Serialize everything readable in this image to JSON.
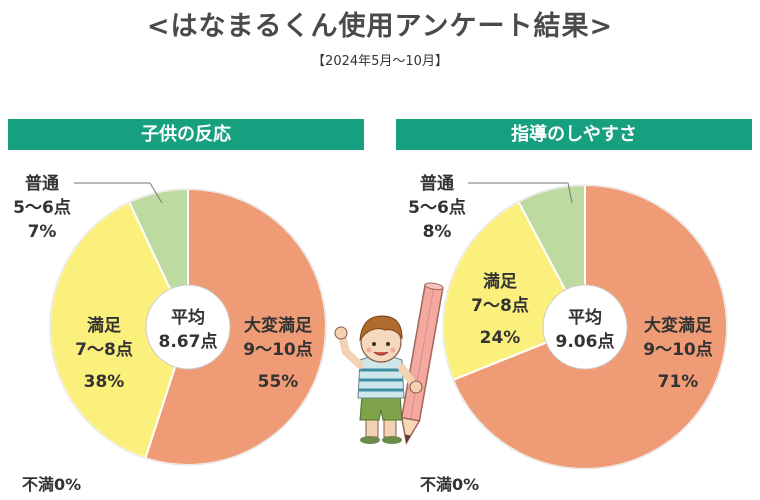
{
  "page": {
    "title": "<はなまるくん使用アンケート結果>",
    "period": "【2024年5月～10月】"
  },
  "colors": {
    "header": "#16a07f",
    "very_satisfied": "#ef9c76",
    "satisfied": "#fbf07c",
    "normal": "#bddba0",
    "outline": "#ffffff"
  },
  "chart_data": [
    {
      "type": "pie",
      "title": "子供の反応",
      "center_label": {
        "line1": "平均",
        "line2": "8.67点"
      },
      "slices": [
        {
          "name": "大変満足",
          "range": "9～10点",
          "pct_label": "55%",
          "value": 55,
          "color": "#ef9c76"
        },
        {
          "name": "満足",
          "range": "7～8点",
          "pct_label": "38%",
          "value": 38,
          "color": "#fbf07c"
        },
        {
          "name": "普通",
          "range": "5～6点",
          "pct_label": "7%",
          "value": 7,
          "color": "#bddba0"
        }
      ],
      "zero_note": "不満0%"
    },
    {
      "type": "pie",
      "title": "指導のしやすさ",
      "center_label": {
        "line1": "平均",
        "line2": "9.06点"
      },
      "slices": [
        {
          "name": "大変満足",
          "range": "9～10点",
          "pct_label": "71%",
          "value": 71,
          "color": "#ef9c76"
        },
        {
          "name": "満足",
          "range": "7～8点",
          "pct_label": "24%",
          "value": 24,
          "color": "#fbf07c"
        },
        {
          "name": "普通",
          "range": "5～6点",
          "pct_label": "8%",
          "value": 8,
          "color": "#bddba0"
        }
      ],
      "zero_note": "不満0%"
    }
  ]
}
